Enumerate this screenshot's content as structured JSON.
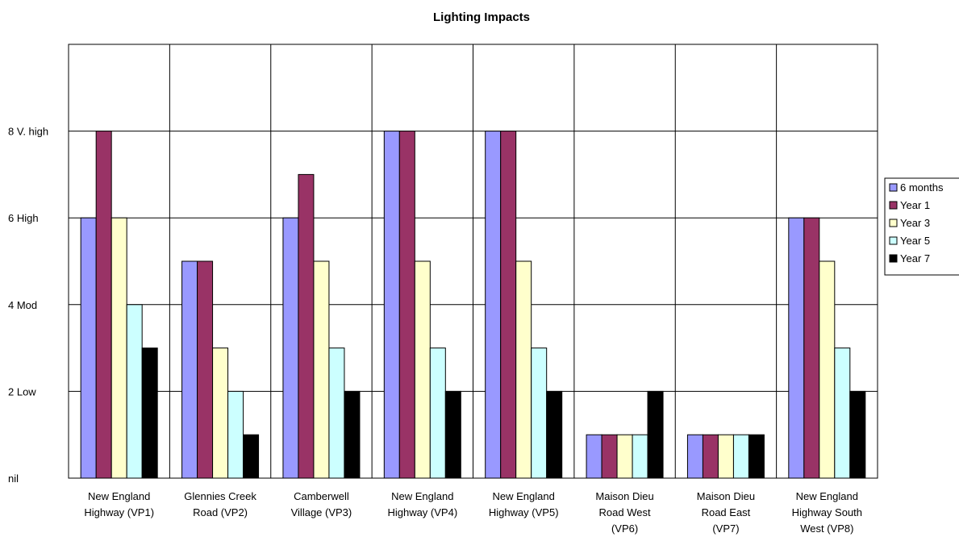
{
  "chart_data": {
    "type": "bar",
    "title": "Lighting Impacts",
    "xlabel": "",
    "ylabel": "",
    "ylim": [
      0,
      10
    ],
    "grid": true,
    "legend_position": "right",
    "y_ticks": [
      {
        "value": 0,
        "label": "nil"
      },
      {
        "value": 2,
        "label": "2 Low"
      },
      {
        "value": 4,
        "label": "4 Mod"
      },
      {
        "value": 6,
        "label": "6 High"
      },
      {
        "value": 8,
        "label": "8 V. high"
      }
    ],
    "categories": [
      [
        "New England",
        "Highway (VP1)"
      ],
      [
        "Glennies Creek",
        "Road (VP2)"
      ],
      [
        "Camberwell",
        "Village (VP3)"
      ],
      [
        "New England",
        "Highway (VP4)"
      ],
      [
        "New England",
        "Highway (VP5)"
      ],
      [
        "Maison Dieu",
        "Road West",
        "(VP6)"
      ],
      [
        "Maison Dieu",
        "Road East",
        "(VP7)"
      ],
      [
        "New England",
        "Highway South",
        "West (VP8)"
      ]
    ],
    "series": [
      {
        "name": "6 months",
        "color": "#9999ff",
        "values": [
          6,
          5,
          6,
          8,
          8,
          1,
          1,
          6
        ]
      },
      {
        "name": "Year 1",
        "color": "#993366",
        "values": [
          8,
          5,
          7,
          8,
          8,
          1,
          1,
          6
        ]
      },
      {
        "name": "Year 3",
        "color": "#ffffcc",
        "values": [
          6,
          3,
          5,
          5,
          5,
          1,
          1,
          5
        ]
      },
      {
        "name": "Year 5",
        "color": "#ccffff",
        "values": [
          4,
          2,
          3,
          3,
          3,
          1,
          1,
          3
        ]
      },
      {
        "name": "Year 7",
        "color": "#000000",
        "values": [
          3,
          1,
          2,
          2,
          2,
          2,
          1,
          2
        ]
      }
    ]
  }
}
